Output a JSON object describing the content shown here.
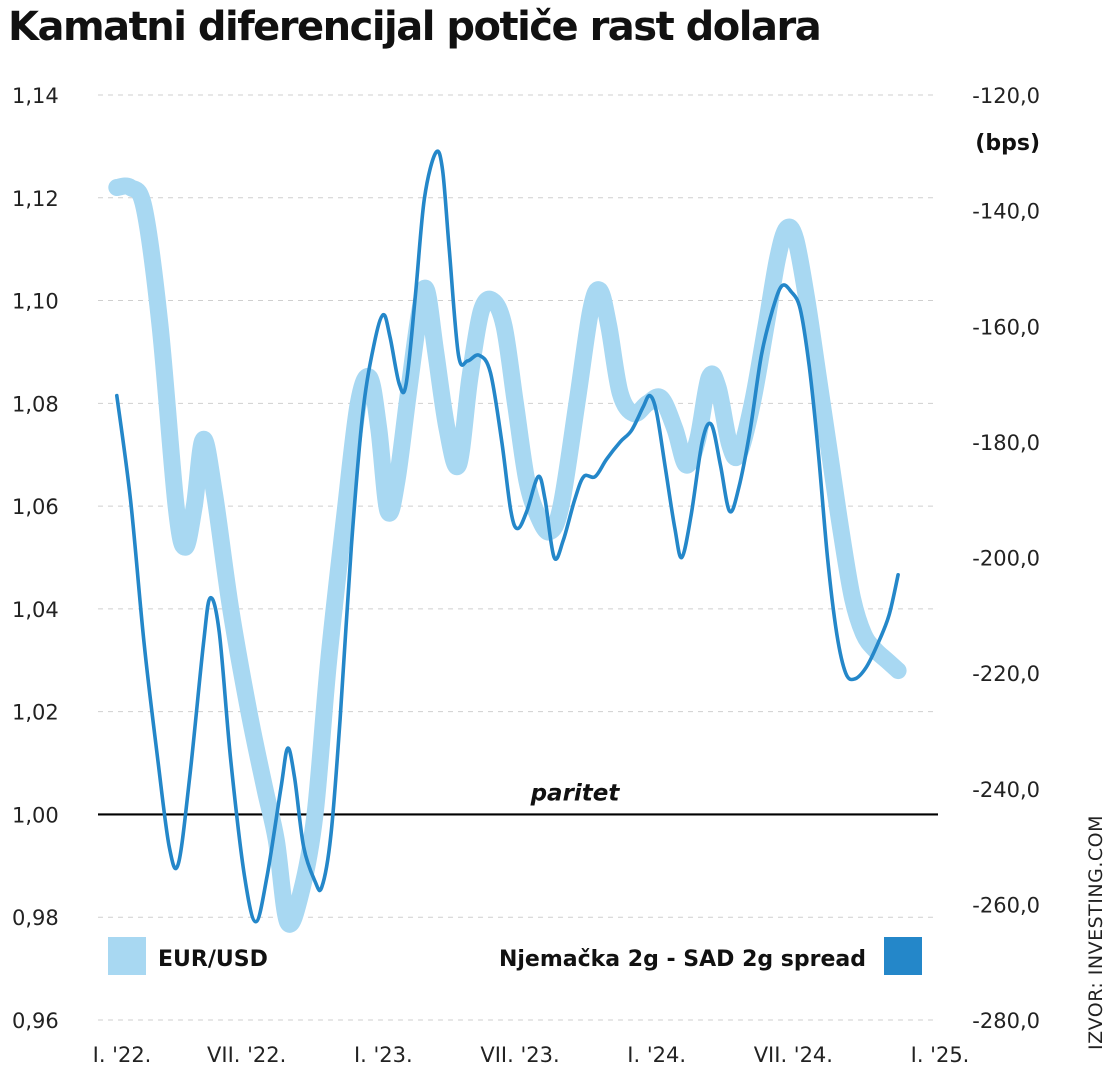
{
  "chart_data": {
    "type": "line",
    "title": "Kamatni diferencijal potiče rast dolara",
    "source": "IZVOR: INVESTING.COM",
    "y2_unit": "(bps)",
    "annotation": "paritet",
    "reference_line": 1.0,
    "left_axis": {
      "ticks": [
        "1,14",
        "1,12",
        "1,10",
        "1,08",
        "1,06",
        "1,04",
        "1,02",
        "1,00",
        "0,98",
        "0,96"
      ],
      "range": [
        0.96,
        1.14
      ]
    },
    "right_axis": {
      "ticks": [
        "-120,0",
        "-140,0",
        "-160,0",
        "-180,0",
        "-200,0",
        "-220,0",
        "-240,0",
        "-260,0",
        "-280,0"
      ],
      "range": [
        -280,
        -120
      ]
    },
    "x_range": [
      0,
      36
    ],
    "x_ticks": [
      {
        "label": "I. '22.",
        "x": 0
      },
      {
        "label": "VII. '22.",
        "x": 6
      },
      {
        "label": "I. '23.",
        "x": 12
      },
      {
        "label": "VII. '23.",
        "x": 18
      },
      {
        "label": "I. '24.",
        "x": 24
      },
      {
        "label": "VII. '24.",
        "x": 30
      },
      {
        "label": "I. '25.",
        "x": 36
      }
    ],
    "series": [
      {
        "name": "EUR/USD",
        "axis": "left",
        "color": "#a8d8f2",
        "points": [
          [
            0.3,
            1.122
          ],
          [
            0.9,
            1.122
          ],
          [
            1.5,
            1.118
          ],
          [
            2.2,
            1.095
          ],
          [
            2.9,
            1.06
          ],
          [
            3.3,
            1.052
          ],
          [
            3.7,
            1.06
          ],
          [
            4.1,
            1.073
          ],
          [
            4.6,
            1.062
          ],
          [
            5.3,
            1.04
          ],
          [
            6.1,
            1.02
          ],
          [
            6.8,
            1.005
          ],
          [
            7.3,
            0.995
          ],
          [
            7.8,
            0.979
          ],
          [
            8.4,
            0.985
          ],
          [
            9.0,
            1.0
          ],
          [
            9.6,
            1.03
          ],
          [
            10.3,
            1.058
          ],
          [
            10.9,
            1.08
          ],
          [
            11.4,
            1.085
          ],
          [
            11.8,
            1.075
          ],
          [
            12.2,
            1.059
          ],
          [
            12.6,
            1.065
          ],
          [
            13.1,
            1.082
          ],
          [
            13.6,
            1.098
          ],
          [
            13.9,
            1.102
          ],
          [
            14.3,
            1.09
          ],
          [
            14.8,
            1.075
          ],
          [
            15.3,
            1.068
          ],
          [
            15.8,
            1.085
          ],
          [
            16.3,
            1.098
          ],
          [
            16.8,
            1.1
          ],
          [
            17.3,
            1.095
          ],
          [
            17.8,
            1.08
          ],
          [
            18.3,
            1.065
          ],
          [
            18.8,
            1.058
          ],
          [
            19.3,
            1.055
          ],
          [
            19.8,
            1.06
          ],
          [
            20.5,
            1.08
          ],
          [
            21.1,
            1.098
          ],
          [
            21.5,
            1.102
          ],
          [
            21.9,
            1.095
          ],
          [
            22.4,
            1.082
          ],
          [
            23.0,
            1.078
          ],
          [
            23.6,
            1.08
          ],
          [
            24.2,
            1.081
          ],
          [
            24.8,
            1.075
          ],
          [
            25.3,
            1.068
          ],
          [
            25.8,
            1.073
          ],
          [
            26.3,
            1.085
          ],
          [
            26.7,
            1.083
          ],
          [
            27.2,
            1.072
          ],
          [
            27.6,
            1.07
          ],
          [
            28.2,
            1.08
          ],
          [
            28.8,
            1.095
          ],
          [
            29.3,
            1.108
          ],
          [
            29.7,
            1.114
          ],
          [
            30.1,
            1.112
          ],
          [
            30.6,
            1.1
          ],
          [
            31.1,
            1.085
          ],
          [
            31.6,
            1.07
          ],
          [
            32.1,
            1.055
          ],
          [
            32.6,
            1.042
          ],
          [
            33.1,
            1.035
          ],
          [
            33.6,
            1.032
          ],
          [
            34.1,
            1.03
          ],
          [
            34.6,
            1.028
          ]
        ]
      },
      {
        "name": "Njemačka 2g - SAD 2g spread",
        "axis": "right",
        "color": "#2487c9",
        "points": [
          [
            0.3,
            -172
          ],
          [
            0.9,
            -190
          ],
          [
            1.5,
            -215
          ],
          [
            2.1,
            -235
          ],
          [
            2.6,
            -250
          ],
          [
            3.0,
            -253
          ],
          [
            3.5,
            -238
          ],
          [
            4.1,
            -215
          ],
          [
            4.4,
            -207
          ],
          [
            4.8,
            -213
          ],
          [
            5.3,
            -235
          ],
          [
            5.9,
            -255
          ],
          [
            6.4,
            -263
          ],
          [
            6.9,
            -255
          ],
          [
            7.5,
            -240
          ],
          [
            7.8,
            -233
          ],
          [
            8.1,
            -238
          ],
          [
            8.5,
            -250
          ],
          [
            9.0,
            -256
          ],
          [
            9.3,
            -257
          ],
          [
            9.7,
            -248
          ],
          [
            10.1,
            -228
          ],
          [
            10.6,
            -198
          ],
          [
            11.1,
            -175
          ],
          [
            11.6,
            -163
          ],
          [
            12.0,
            -158
          ],
          [
            12.3,
            -162
          ],
          [
            12.7,
            -170
          ],
          [
            13.0,
            -170
          ],
          [
            13.4,
            -155
          ],
          [
            13.8,
            -138
          ],
          [
            14.3,
            -130
          ],
          [
            14.6,
            -133
          ],
          [
            14.9,
            -147
          ],
          [
            15.3,
            -165
          ],
          [
            15.7,
            -166
          ],
          [
            16.2,
            -165
          ],
          [
            16.7,
            -168
          ],
          [
            17.2,
            -180
          ],
          [
            17.6,
            -192
          ],
          [
            17.9,
            -195
          ],
          [
            18.3,
            -192
          ],
          [
            18.8,
            -186
          ],
          [
            19.1,
            -190
          ],
          [
            19.5,
            -200
          ],
          [
            19.9,
            -197
          ],
          [
            20.4,
            -190
          ],
          [
            20.8,
            -186
          ],
          [
            21.3,
            -186
          ],
          [
            21.8,
            -183
          ],
          [
            22.4,
            -180
          ],
          [
            22.9,
            -178
          ],
          [
            23.4,
            -174
          ],
          [
            23.7,
            -172
          ],
          [
            24.0,
            -175
          ],
          [
            24.4,
            -185
          ],
          [
            24.8,
            -195
          ],
          [
            25.1,
            -200
          ],
          [
            25.5,
            -193
          ],
          [
            26.0,
            -180
          ],
          [
            26.4,
            -177
          ],
          [
            26.8,
            -184
          ],
          [
            27.2,
            -192
          ],
          [
            27.6,
            -188
          ],
          [
            28.1,
            -178
          ],
          [
            28.6,
            -165
          ],
          [
            29.1,
            -157
          ],
          [
            29.5,
            -153
          ],
          [
            29.9,
            -154
          ],
          [
            30.3,
            -157
          ],
          [
            30.7,
            -167
          ],
          [
            31.1,
            -182
          ],
          [
            31.5,
            -200
          ],
          [
            31.9,
            -213
          ],
          [
            32.3,
            -220
          ],
          [
            32.7,
            -221
          ],
          [
            33.2,
            -219
          ],
          [
            33.7,
            -215
          ],
          [
            34.2,
            -210
          ],
          [
            34.6,
            -203
          ]
        ]
      }
    ]
  }
}
